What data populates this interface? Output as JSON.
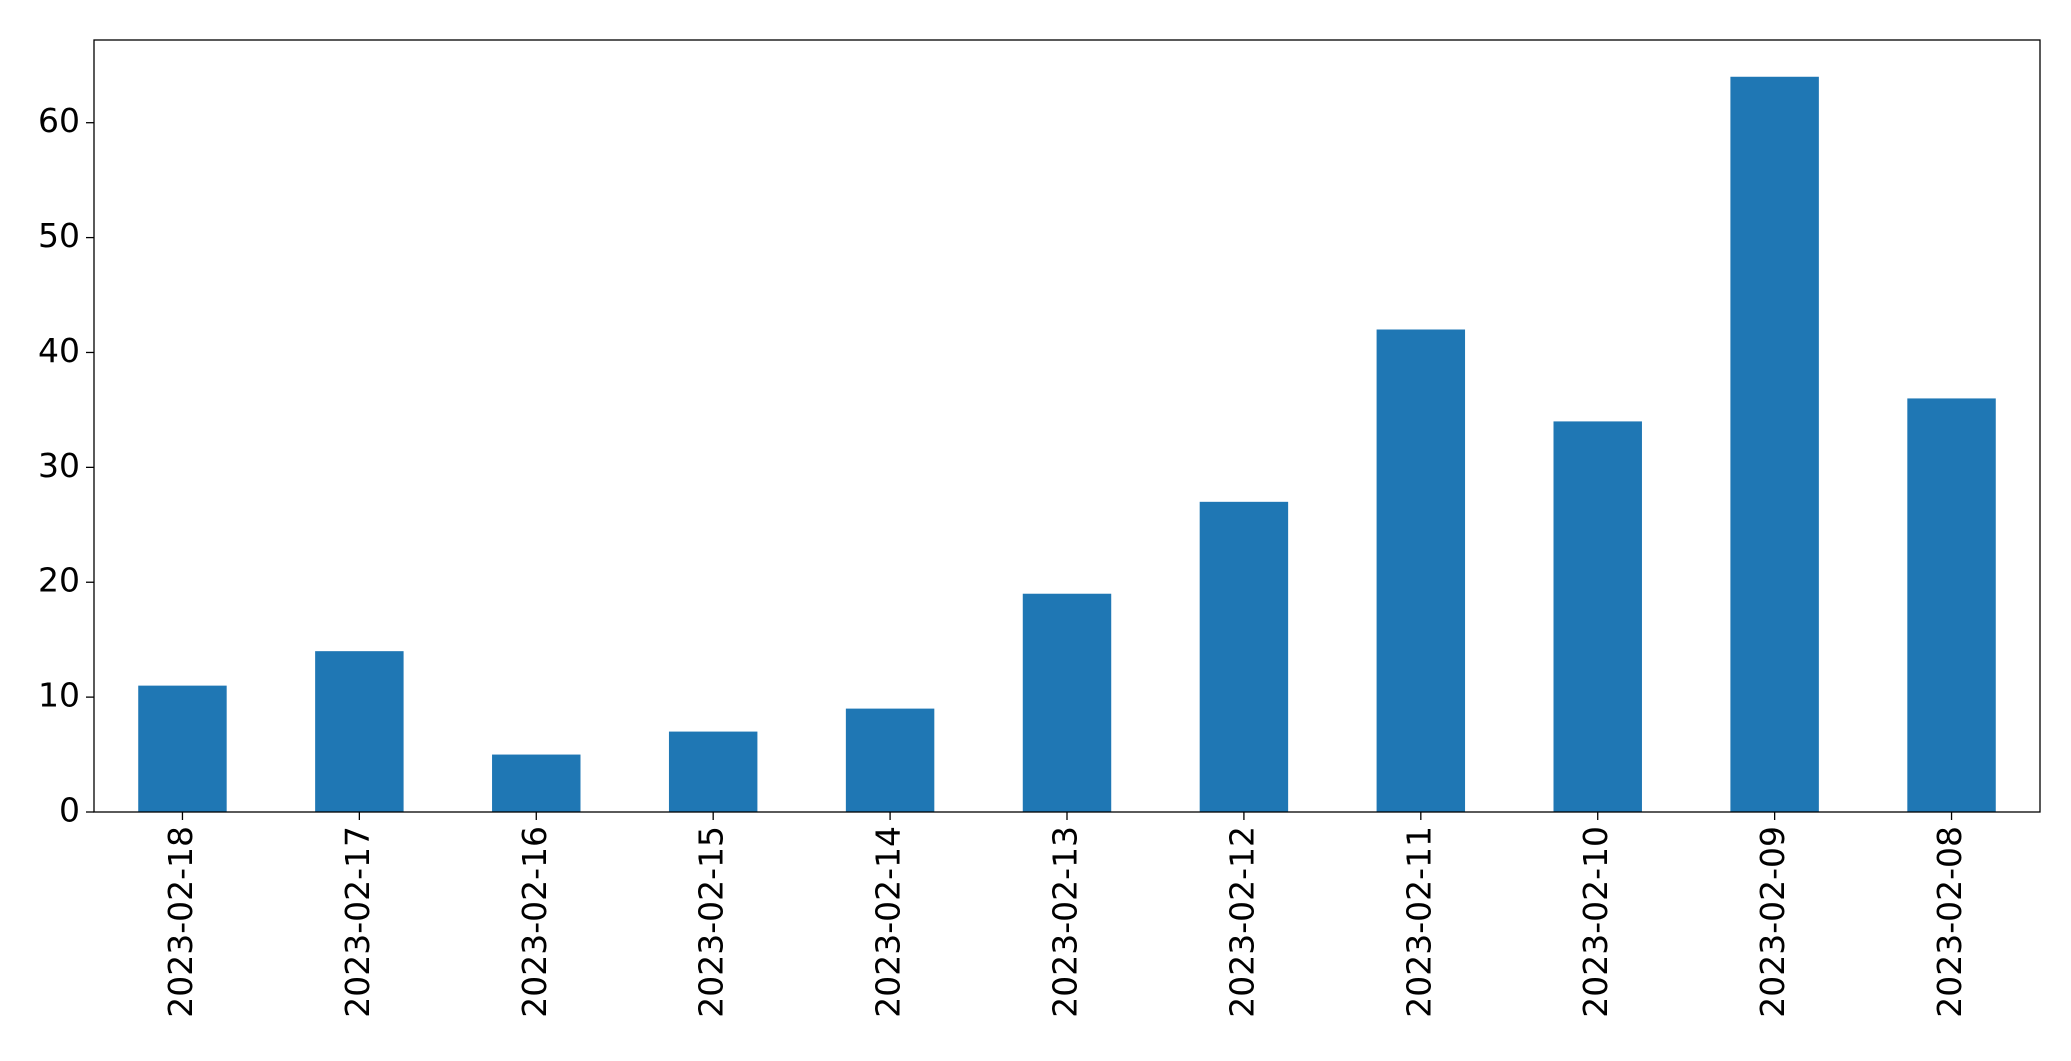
{
  "chart_data": {
    "type": "bar",
    "categories": [
      "2023-02-18",
      "2023-02-17",
      "2023-02-16",
      "2023-02-15",
      "2023-02-14",
      "2023-02-13",
      "2023-02-12",
      "2023-02-11",
      "2023-02-10",
      "2023-02-09",
      "2023-02-08"
    ],
    "values": [
      11,
      14,
      5,
      7,
      9,
      19,
      27,
      42,
      34,
      64,
      36
    ],
    "color": "#1f77b4",
    "ylim": [
      0,
      67.2
    ],
    "yticks": [
      0,
      10,
      20,
      30,
      40,
      50,
      60
    ],
    "grid": false
  }
}
